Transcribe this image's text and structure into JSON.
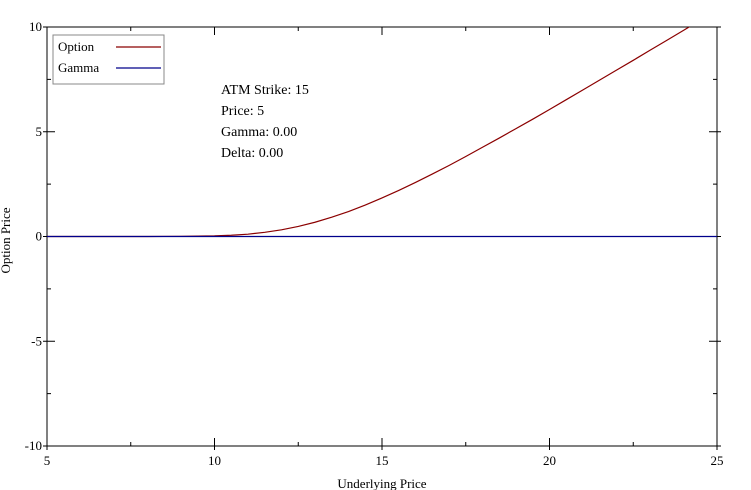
{
  "chart_data": {
    "type": "line",
    "title": "",
    "xlabel": "Underlying Price",
    "ylabel": "Option Price",
    "xlim": [
      5,
      25
    ],
    "ylim": [
      -10,
      10
    ],
    "x_ticks": [
      5,
      10,
      15,
      20,
      25
    ],
    "y_ticks": [
      -10,
      -5,
      0,
      5,
      10
    ],
    "x_tick_labels": [
      "5",
      "10",
      "15",
      "20",
      "25"
    ],
    "y_tick_labels": [
      "-10",
      "-5",
      "0",
      "5",
      "10"
    ],
    "grid": false,
    "legend_position": "top-left",
    "series": [
      {
        "name": "Option",
        "color": "#8b0000",
        "x": [
          5,
          6,
          7,
          8,
          9,
          10,
          10.5,
          11,
          11.5,
          12,
          12.5,
          13,
          13.5,
          14,
          14.5,
          15,
          15.5,
          16,
          16.5,
          17,
          17.5,
          18,
          18.5,
          19,
          19.5,
          20,
          20.5,
          21,
          21.5,
          22,
          22.5,
          23,
          23.5,
          24,
          24.5,
          25
        ],
        "y": [
          0,
          0,
          0,
          0,
          0.01,
          0.03,
          0.06,
          0.11,
          0.2,
          0.32,
          0.48,
          0.68,
          0.92,
          1.19,
          1.5,
          1.84,
          2.2,
          2.58,
          2.98,
          3.39,
          3.82,
          4.26,
          4.7,
          5.15,
          5.6,
          6.06,
          6.53,
          7.0,
          7.47,
          7.94,
          8.41,
          8.89,
          9.36,
          9.84,
          10.32,
          10.8
        ]
      },
      {
        "name": "Gamma",
        "color": "#00008b",
        "x": [
          5,
          10,
          15,
          20,
          25
        ],
        "y": [
          0,
          0,
          0,
          0,
          0
        ]
      }
    ],
    "annotations": [
      "ATM Strike: 15",
      "Price: 5",
      "Gamma: 0.00",
      "Delta: 0.00"
    ]
  }
}
